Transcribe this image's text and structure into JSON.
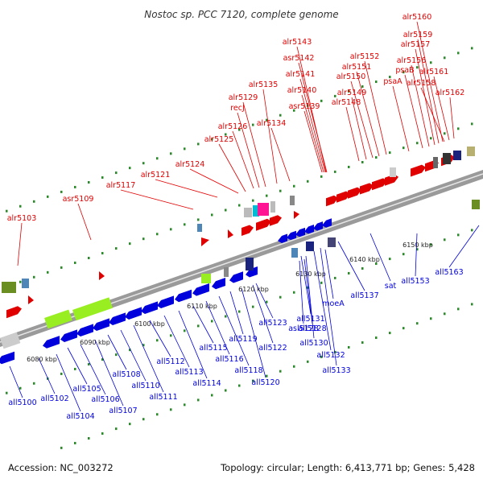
{
  "title": "Nostoc sp. PCC 7120, complete genome",
  "footer": {
    "accession": "Accession: NC_003272",
    "topology": "Topology: circular; Length: 6,413,771 bp; Genes: 5,428"
  },
  "colors": {
    "forward": "#e00000",
    "reverse": "#0000dd",
    "backbone": "#9a9a9a",
    "dots": "#2a8a2a",
    "light_green": "#99ee22",
    "gray": "#cccccc"
  },
  "ticks": [
    "6080 kbp",
    "6090 kbp",
    "6100 kbp",
    "6110 kbp",
    "6120 kbp",
    "6130 kbp",
    "6140 kbp",
    "6150 kbp"
  ],
  "forward_labels": [
    "alr5103",
    "asr5109",
    "alr5117",
    "alr5121",
    "alr5124",
    "alr5125",
    "alr5126",
    "recJ",
    "alr5129",
    "alr5134",
    "alr5135",
    "asr5142",
    "alr5143",
    "alr5141",
    "alr5140",
    "asr5139",
    "alr5148",
    "alr5149",
    "alr5150",
    "alr5151",
    "alr5152",
    "psaA",
    "psaB",
    "alr5156",
    "alr5157",
    "alr5159",
    "alr5160",
    "alr5158",
    "alr5161",
    "alr5162"
  ],
  "reverse_labels": [
    "all5100",
    "all5102",
    "all5104",
    "all5105",
    "all5106",
    "all5107",
    "all5108",
    "all5110",
    "all5111",
    "all5112",
    "all5113",
    "all5114",
    "all5115",
    "all5116",
    "all5118",
    "all5119",
    "all5120",
    "all5122",
    "all5123",
    "all5128",
    "asl5128",
    "all5130",
    "all5131",
    "all5132",
    "all5133",
    "moeA",
    "all5137",
    "sat",
    "all5153",
    "all5163"
  ]
}
